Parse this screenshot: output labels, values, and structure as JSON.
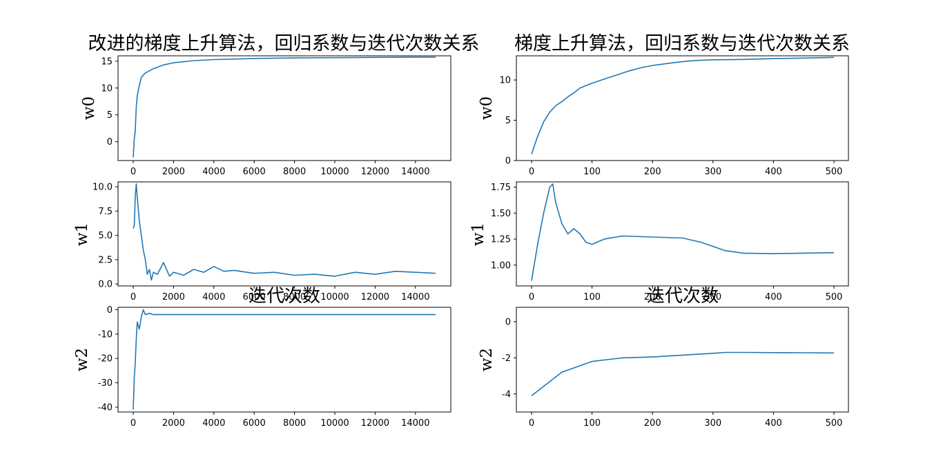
{
  "figure": {
    "title_left": "改进的梯度上升算法，回归系数与迭代次数关系",
    "title_right": "梯度上升算法，回归系数与迭代次数关系",
    "xlabel": "迭代次数"
  },
  "colors": {
    "line": "#1f77b4",
    "axis": "#000000",
    "background": "#ffffff"
  },
  "chart_data": [
    {
      "type": "line",
      "id": "left-w0",
      "title": "",
      "xlabel": "",
      "ylabel": "w0",
      "xlim": [
        0,
        15000
      ],
      "ylim": [
        -3.5,
        16
      ],
      "xticks": [
        0,
        2000,
        4000,
        6000,
        8000,
        10000,
        12000,
        14000
      ],
      "yticks": [
        0,
        5,
        10,
        15
      ],
      "series": [
        {
          "x": [
            0,
            50,
            100,
            150,
            200,
            300,
            400,
            600,
            800,
            1000,
            1500,
            2000,
            3000,
            4000,
            6000,
            8000,
            10000,
            12000,
            14000,
            15000
          ],
          "y": [
            -2.9,
            0.5,
            2.0,
            6.5,
            8.5,
            10.5,
            12.0,
            12.8,
            13.2,
            13.6,
            14.3,
            14.7,
            15.1,
            15.3,
            15.5,
            15.6,
            15.65,
            15.7,
            15.75,
            15.75
          ]
        }
      ]
    },
    {
      "type": "line",
      "id": "left-w1",
      "title": "",
      "xlabel": "",
      "ylabel": "w1",
      "xlim": [
        0,
        15000
      ],
      "ylim": [
        -0.2,
        10.5
      ],
      "xticks": [
        0,
        2000,
        4000,
        6000,
        8000,
        10000,
        12000,
        14000
      ],
      "yticks": [
        0.0,
        2.5,
        5.0,
        7.5,
        10.0
      ],
      "series": [
        {
          "x": [
            0,
            50,
            100,
            150,
            200,
            300,
            400,
            500,
            600,
            700,
            800,
            900,
            1000,
            1200,
            1500,
            1800,
            2000,
            2500,
            3000,
            3500,
            4000,
            4500,
            5000,
            6000,
            7000,
            8000,
            9000,
            10000,
            11000,
            12000,
            13000,
            14000,
            15000
          ],
          "y": [
            5.7,
            6.0,
            9.0,
            10.3,
            9.0,
            6.5,
            5.0,
            3.5,
            2.5,
            1.0,
            1.5,
            0.4,
            1.2,
            1.0,
            2.2,
            0.8,
            1.2,
            0.9,
            1.5,
            1.2,
            1.8,
            1.3,
            1.4,
            1.1,
            1.2,
            0.9,
            1.0,
            0.8,
            1.2,
            1.0,
            1.3,
            1.2,
            1.1
          ]
        }
      ]
    },
    {
      "type": "line",
      "id": "left-w2",
      "title": "",
      "xlabel": "迭代次数",
      "ylabel": "w2",
      "xlim": [
        0,
        15000
      ],
      "ylim": [
        -42,
        1
      ],
      "xticks": [
        0,
        2000,
        4000,
        6000,
        8000,
        10000,
        12000,
        14000
      ],
      "yticks": [
        0,
        -10,
        -20,
        -30,
        -40
      ],
      "series": [
        {
          "x": [
            0,
            50,
            100,
            150,
            200,
            300,
            400,
            500,
            600,
            800,
            1000,
            2000,
            3000,
            4000,
            6000,
            8000,
            10000,
            12000,
            14000,
            15000
          ],
          "y": [
            -41,
            -28,
            -22,
            -12,
            -5,
            -8,
            -3,
            0,
            -2,
            -1.5,
            -2.0,
            -2.0,
            -2.0,
            -2.0,
            -2.0,
            -2.0,
            -2.0,
            -2.0,
            -2.0,
            -2.0
          ]
        }
      ]
    },
    {
      "type": "line",
      "id": "right-w0",
      "title": "",
      "xlabel": "",
      "ylabel": "w0",
      "xlim": [
        0,
        500
      ],
      "ylim": [
        0,
        13
      ],
      "xticks": [
        0,
        100,
        200,
        300,
        400,
        500
      ],
      "yticks": [
        0,
        5,
        10
      ],
      "series": [
        {
          "x": [
            0,
            10,
            20,
            30,
            40,
            50,
            60,
            70,
            80,
            90,
            100,
            120,
            140,
            160,
            180,
            200,
            220,
            240,
            260,
            280,
            300,
            350,
            400,
            450,
            500
          ],
          "y": [
            0.8,
            3.0,
            4.8,
            6.0,
            6.8,
            7.3,
            7.9,
            8.4,
            9.0,
            9.3,
            9.6,
            10.1,
            10.6,
            11.1,
            11.5,
            11.8,
            12.0,
            12.2,
            12.35,
            12.45,
            12.5,
            12.55,
            12.65,
            12.72,
            12.8
          ]
        }
      ]
    },
    {
      "type": "line",
      "id": "right-w1",
      "title": "",
      "xlabel": "迭代次数",
      "ylabel": "w1",
      "xlim": [
        0,
        500
      ],
      "ylim": [
        0.8,
        1.8
      ],
      "xticks": [
        0,
        100,
        200,
        300,
        400,
        500
      ],
      "yticks": [
        1.0,
        1.25,
        1.5,
        1.75
      ],
      "series": [
        {
          "x": [
            0,
            10,
            20,
            30,
            35,
            40,
            50,
            60,
            70,
            80,
            90,
            100,
            120,
            150,
            200,
            250,
            280,
            300,
            320,
            350,
            400,
            450,
            500
          ],
          "y": [
            0.85,
            1.2,
            1.5,
            1.75,
            1.78,
            1.6,
            1.4,
            1.3,
            1.35,
            1.3,
            1.22,
            1.2,
            1.25,
            1.28,
            1.27,
            1.26,
            1.22,
            1.18,
            1.14,
            1.115,
            1.11,
            1.115,
            1.12
          ]
        }
      ]
    },
    {
      "type": "line",
      "id": "right-w2",
      "title": "",
      "xlabel": "",
      "ylabel": "w2",
      "xlim": [
        0,
        500
      ],
      "ylim": [
        -5,
        0.8
      ],
      "xticks": [
        0,
        100,
        200,
        300,
        400,
        500
      ],
      "yticks": [
        0,
        -2,
        -4
      ],
      "series": [
        {
          "x": [
            0,
            50,
            100,
            150,
            200,
            250,
            300,
            320,
            350,
            400,
            450,
            500
          ],
          "y": [
            -4.1,
            -2.8,
            -2.2,
            -2.0,
            -1.95,
            -1.85,
            -1.75,
            -1.7,
            -1.7,
            -1.71,
            -1.72,
            -1.73
          ]
        }
      ]
    }
  ]
}
